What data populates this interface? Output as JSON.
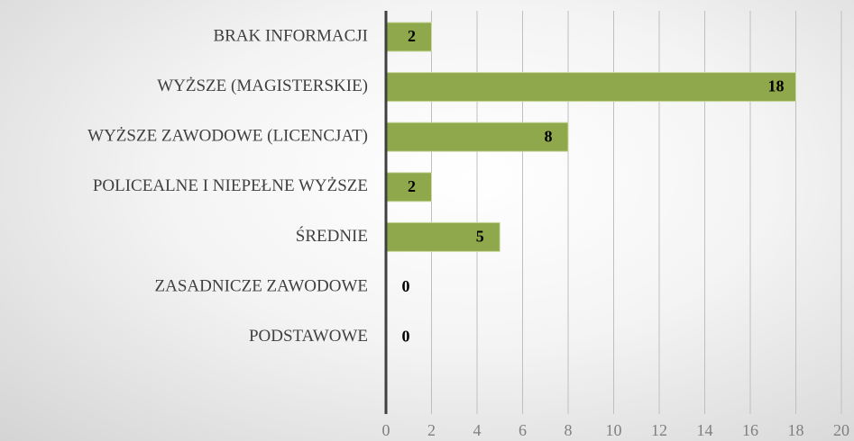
{
  "chart_data": {
    "type": "bar",
    "orientation": "horizontal",
    "categories": [
      "BRAK INFORMACJI",
      "WYŻSZE (MAGISTERSKIE)",
      "WYŻSZE ZAWODOWE (LICENCJAT)",
      "POLICEALNE I NIEPEŁNE WYŻSZE",
      "ŚREDNIE",
      "ZASADNICZE ZAWODOWE",
      "PODSTAWOWE"
    ],
    "values": [
      2,
      18,
      8,
      2,
      5,
      0,
      0
    ],
    "color": "#8ea84b",
    "xlim": [
      0,
      20
    ],
    "xticks": [
      0,
      2,
      4,
      6,
      8,
      10,
      12,
      14,
      16,
      18,
      20
    ],
    "grid": true
  }
}
